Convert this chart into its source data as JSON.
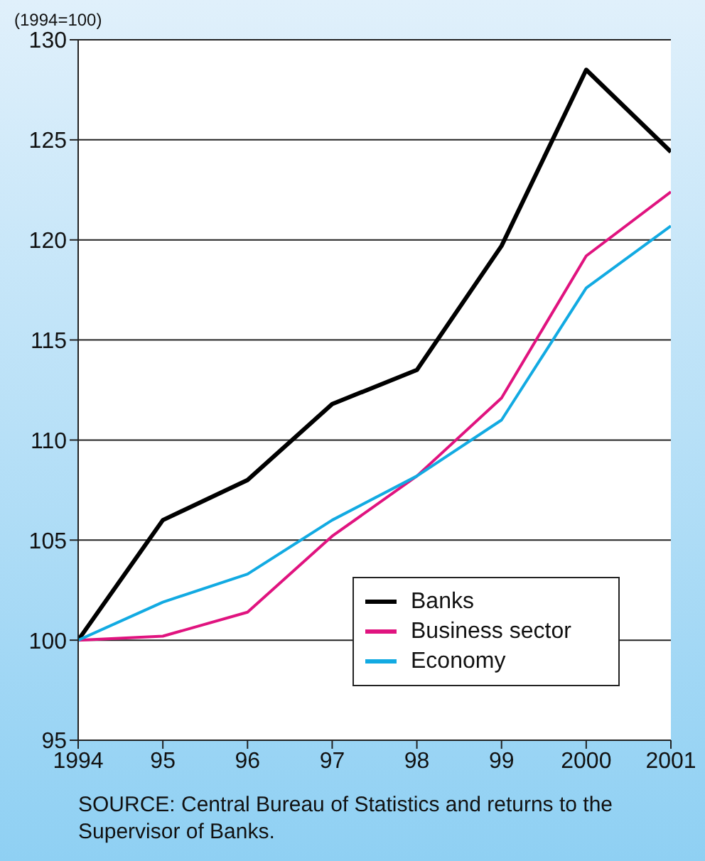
{
  "chart_data": {
    "type": "line",
    "ylabel": "(1994=100)",
    "x": [
      1994,
      1995,
      1996,
      1997,
      1998,
      1999,
      2000,
      2001
    ],
    "series": [
      {
        "name": "Banks",
        "color": "#000000",
        "values": [
          100,
          106,
          108,
          111.8,
          113.5,
          119.7,
          128.5,
          124.4
        ]
      },
      {
        "name": "Business sector",
        "color": "#e0137f",
        "values": [
          100,
          100.2,
          101.4,
          105.2,
          108.2,
          112.1,
          119.2,
          122.4
        ]
      },
      {
        "name": "Economy",
        "color": "#12aae2",
        "values": [
          100,
          101.9,
          103.3,
          106,
          108.2,
          111,
          117.6,
          120.7
        ]
      }
    ],
    "xlim": [
      1994,
      2001
    ],
    "xticks": [
      1994,
      {
        "value": 1995,
        "label": "95"
      },
      {
        "value": 1996,
        "label": "96"
      },
      {
        "value": 1997,
        "label": "97"
      },
      {
        "value": 1998,
        "label": "98"
      },
      {
        "value": 1999,
        "label": "99"
      },
      2000,
      2001
    ],
    "ylim": [
      95,
      130
    ],
    "yticks": [
      95,
      100,
      105,
      110,
      115,
      120,
      125,
      130
    ],
    "grid": "y",
    "legend": "bottom right",
    "marker": "none",
    "line_style": "solid",
    "annotations": [
      "SOURCE: Central Bureau of Statistics and returns to the Supervisor of Banks."
    ]
  }
}
